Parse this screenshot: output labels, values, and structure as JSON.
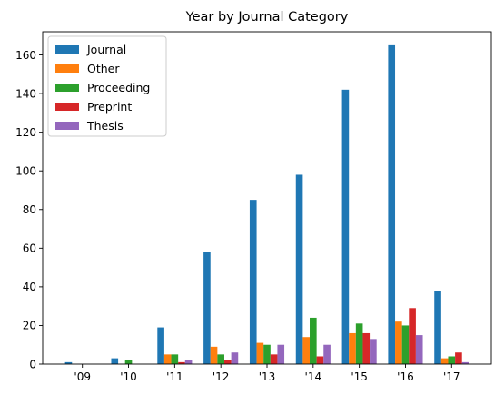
{
  "chart_data": {
    "type": "bar",
    "title": "Year by Journal Category",
    "xlabel": "",
    "ylabel": "",
    "categories": [
      "'09",
      "'10",
      "'11",
      "'12",
      "'13",
      "'14",
      "'15",
      "'16",
      "'17"
    ],
    "ylim": [
      0,
      172
    ],
    "yticks": [
      0,
      20,
      40,
      60,
      80,
      100,
      120,
      140,
      160
    ],
    "legend_position": "top-left",
    "grid": false,
    "series": [
      {
        "name": "Journal",
        "color": "#1f77b4",
        "values": [
          1,
          3,
          19,
          58,
          85,
          98,
          142,
          165,
          38
        ]
      },
      {
        "name": "Other",
        "color": "#ff7f0e",
        "values": [
          0,
          0,
          5,
          9,
          11,
          14,
          16,
          22,
          3
        ]
      },
      {
        "name": "Proceeding",
        "color": "#2ca02c",
        "values": [
          0,
          2,
          5,
          5,
          10,
          24,
          21,
          20,
          4
        ]
      },
      {
        "name": "Preprint",
        "color": "#d62728",
        "values": [
          0,
          0,
          1,
          2,
          5,
          4,
          16,
          29,
          6
        ]
      },
      {
        "name": "Thesis",
        "color": "#9467bd",
        "values": [
          0,
          0,
          2,
          6,
          10,
          10,
          13,
          15,
          1
        ]
      }
    ]
  }
}
